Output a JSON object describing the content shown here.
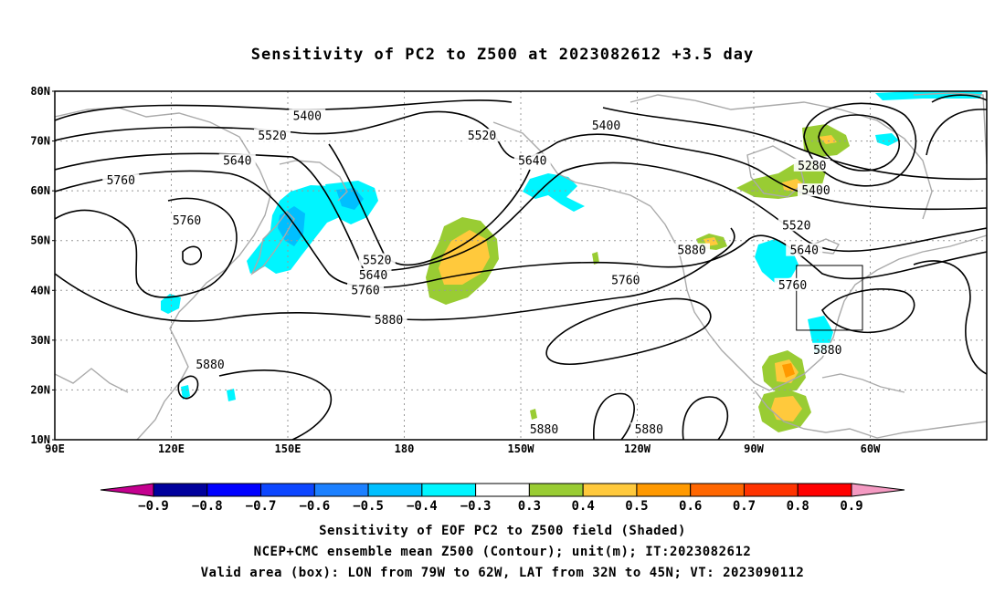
{
  "title": "Sensitivity of PC2 to Z500 at 2023082612 +3.5 day",
  "lat_labels": [
    "80N",
    "70N",
    "60N",
    "50N",
    "40N",
    "30N",
    "20N",
    "10N"
  ],
  "lon_labels": [
    "90E",
    "120E",
    "150E",
    "180",
    "150W",
    "120W",
    "90W",
    "60W"
  ],
  "contour_labels": [
    {
      "text": "5400",
      "lon": 155,
      "lat": 75
    },
    {
      "text": "5400",
      "lon": 232,
      "lat": 73
    },
    {
      "text": "5520",
      "lon": 146,
      "lat": 71
    },
    {
      "text": "5520",
      "lon": 200,
      "lat": 71
    },
    {
      "text": "5640",
      "lon": 137,
      "lat": 66
    },
    {
      "text": "5640",
      "lon": 213,
      "lat": 66
    },
    {
      "text": "5760",
      "lon": 107,
      "lat": 62
    },
    {
      "text": "5760",
      "lon": 124,
      "lat": 54
    },
    {
      "text": "5520",
      "lon": 173,
      "lat": 46
    },
    {
      "text": "5640",
      "lon": 172,
      "lat": 43
    },
    {
      "text": "5760",
      "lon": 170,
      "lat": 40
    },
    {
      "text": "5880",
      "lon": 176,
      "lat": 34
    },
    {
      "text": "5760",
      "lon": 237,
      "lat": 42
    },
    {
      "text": "5880",
      "lon": 254,
      "lat": 48
    },
    {
      "text": "5640",
      "lon": 283,
      "lat": 48
    },
    {
      "text": "5760",
      "lon": 280,
      "lat": 41
    },
    {
      "text": "5520",
      "lon": 281,
      "lat": 53
    },
    {
      "text": "5400",
      "lon": 286,
      "lat": 60
    },
    {
      "text": "5280",
      "lon": 285,
      "lat": 65
    },
    {
      "text": "5880",
      "lon": 289,
      "lat": 28
    },
    {
      "text": "5880",
      "lon": 130,
      "lat": 25
    },
    {
      "text": "5880",
      "lon": 216,
      "lat": 12
    },
    {
      "text": "5880",
      "lon": 243,
      "lat": 12
    }
  ],
  "colorbar": {
    "labels": [
      "−0.9",
      "−0.8",
      "−0.7",
      "−0.6",
      "−0.5",
      "−0.4",
      "−0.3",
      "0.3",
      "0.4",
      "0.5",
      "0.6",
      "0.7",
      "0.8",
      "0.9"
    ],
    "colors": [
      "#00009c",
      "#0000ff",
      "#0d46ff",
      "#1c80ff",
      "#00bfff",
      "#00f5ff",
      "#ffffff",
      "#99cc33",
      "#ffc93c",
      "#ff9900",
      "#ff6600",
      "#ff3300",
      "#ff0000"
    ],
    "low_end": "#c4008f",
    "high_end": "#f49ac2"
  },
  "shading_colors": {
    "cyan": "#00f5ff",
    "skyblue": "#00bfff",
    "blue": "#1c80ff",
    "green": "#99cc33",
    "yellow": "#ffc93c",
    "orange": "#ff9900"
  },
  "valid_box": {
    "lon_from": 281,
    "lon_to": 298,
    "lat_from": 32,
    "lat_to": 45
  },
  "footer": {
    "line1": "Sensitivity of EOF PC2 to Z500 field (Shaded)",
    "line2": "NCEP+CMC ensemble mean Z500 (Contour); unit(m); IT:2023082612",
    "line3": "Valid area (box): LON from 79W to 62W, LAT from 32N to 45N; VT: 2023090112"
  }
}
